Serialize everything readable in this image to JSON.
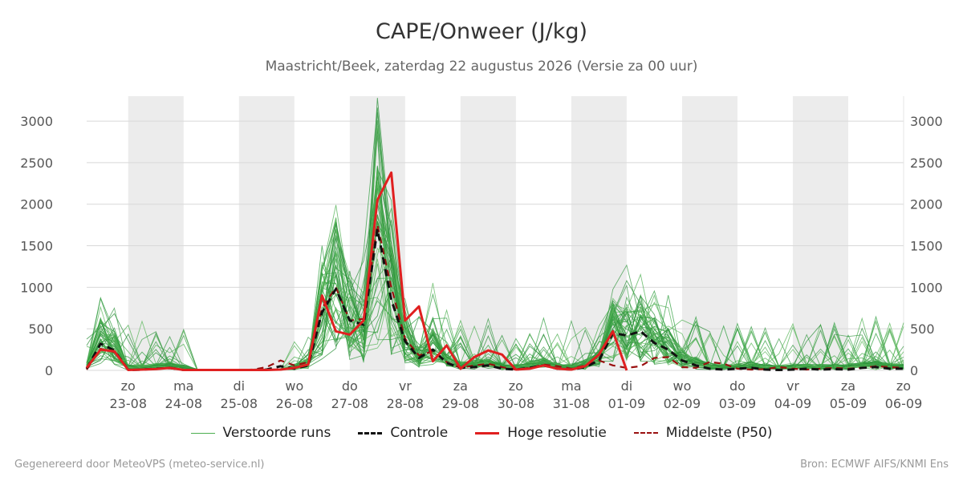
{
  "title": "CAPE/Onweer (J/kg)",
  "subtitle": "Maastricht/Beek, zaterdag 22 augustus 2026 (Versie za 00 uur)",
  "footer": {
    "left": "Gegenereerd door MeteoVPS (meteo-service.nl)",
    "right": "Bron: ECMWF AIFS/KNMI Ens"
  },
  "legend": [
    {
      "label": "Verstoorde runs",
      "color": "#4caf50",
      "style": "thin"
    },
    {
      "label": "Controle",
      "color": "#111111",
      "style": "dashed"
    },
    {
      "label": "Hoge resolutie",
      "color": "#e02020",
      "style": "solid"
    },
    {
      "label": "Middelste (P50)",
      "color": "#9a1010",
      "style": "dashed"
    }
  ],
  "chart_data": {
    "type": "line",
    "title": "CAPE/Onweer (J/kg)",
    "ylim": [
      0,
      3300
    ],
    "yticks": [
      0,
      500,
      1000,
      1500,
      2000,
      2500,
      3000
    ],
    "x_range_days": [
      -0.75,
      14.0
    ],
    "x_ticks": [
      {
        "day": "zo",
        "date": "23-08"
      },
      {
        "day": "ma",
        "date": "24-08"
      },
      {
        "day": "di",
        "date": "25-08"
      },
      {
        "day": "wo",
        "date": "26-08"
      },
      {
        "day": "do",
        "date": "27-08"
      },
      {
        "day": "vr",
        "date": "28-08"
      },
      {
        "day": "za",
        "date": "29-08"
      },
      {
        "day": "zo",
        "date": "30-08"
      },
      {
        "day": "ma",
        "date": "31-08"
      },
      {
        "day": "di",
        "date": "01-09"
      },
      {
        "day": "wo",
        "date": "02-09"
      },
      {
        "day": "do",
        "date": "03-09"
      },
      {
        "day": "vr",
        "date": "04-09"
      },
      {
        "day": "za",
        "date": "05-09"
      },
      {
        "day": "zo",
        "date": "06-09"
      }
    ],
    "shaded_day_starts": [
      0,
      2,
      4,
      6,
      8,
      10,
      12
    ],
    "grid": true,
    "legend_position": "bottom",
    "series": [
      {
        "name": "Hoge resolutie",
        "color": "#e02020",
        "x": [
          -0.75,
          -0.5,
          -0.25,
          0,
          0.25,
          0.5,
          0.75,
          1,
          1.25,
          1.5,
          1.75,
          2,
          2.25,
          2.5,
          2.75,
          3,
          3.25,
          3.5,
          3.75,
          4,
          4.25,
          4.5,
          4.75,
          5,
          5.25,
          5.5,
          5.75,
          6,
          6.25,
          6.5,
          6.75,
          7,
          7.25,
          7.5,
          7.75,
          8,
          8.25,
          8.5,
          8.75,
          9
        ],
        "values": [
          30,
          250,
          230,
          5,
          10,
          15,
          30,
          5,
          5,
          5,
          5,
          5,
          5,
          5,
          10,
          30,
          70,
          900,
          470,
          430,
          600,
          2050,
          2380,
          600,
          770,
          110,
          300,
          20,
          160,
          240,
          190,
          10,
          20,
          60,
          20,
          10,
          50,
          190,
          470,
          0
        ]
      },
      {
        "name": "Controle",
        "color": "#111111",
        "x": [
          -0.75,
          -0.5,
          -0.25,
          0,
          0.25,
          0.5,
          0.75,
          1,
          1.25,
          1.5,
          1.75,
          2,
          2.25,
          2.5,
          2.75,
          3,
          3.25,
          3.5,
          3.75,
          4,
          4.25,
          4.5,
          4.75,
          5,
          5.25,
          5.5,
          5.75,
          6,
          6.25,
          6.5,
          6.75,
          7,
          7.25,
          7.5,
          7.75,
          8,
          8.25,
          8.5,
          8.75,
          9,
          9.25,
          9.5,
          9.75,
          10,
          10.25,
          10.5,
          10.75,
          11,
          11.25,
          11.5,
          11.75,
          12,
          12.25,
          12.5,
          12.75,
          13,
          13.25,
          13.5,
          13.75,
          14
        ],
        "values": [
          20,
          320,
          240,
          5,
          10,
          20,
          30,
          5,
          5,
          5,
          5,
          5,
          5,
          10,
          50,
          20,
          60,
          700,
          980,
          600,
          550,
          1700,
          850,
          350,
          150,
          250,
          90,
          30,
          40,
          60,
          20,
          10,
          30,
          60,
          20,
          10,
          40,
          120,
          450,
          420,
          470,
          330,
          250,
          120,
          60,
          20,
          10,
          20,
          30,
          10,
          5,
          10,
          20,
          10,
          15,
          10,
          30,
          40,
          20,
          20
        ]
      },
      {
        "name": "Middelste (P50)",
        "color": "#9a1010",
        "x": [
          -0.75,
          -0.5,
          -0.25,
          0,
          0.25,
          0.5,
          0.75,
          1,
          1.25,
          1.5,
          1.75,
          2,
          2.25,
          2.5,
          2.75,
          3,
          3.25,
          3.5,
          3.75,
          4,
          4.25,
          4.5,
          4.75,
          5,
          5.25,
          5.5,
          5.75,
          6,
          6.25,
          6.5,
          6.75,
          7,
          7.25,
          7.5,
          7.75,
          8,
          8.25,
          8.5,
          8.75,
          9,
          9.25,
          9.5,
          9.75,
          10,
          10.25,
          10.5,
          10.75,
          11,
          11.25,
          11.5,
          11.75,
          12,
          12.25,
          12.5,
          12.75,
          13,
          13.25,
          13.5,
          13.75,
          14
        ],
        "values": [
          10,
          260,
          220,
          5,
          10,
          20,
          25,
          5,
          5,
          5,
          5,
          5,
          10,
          40,
          120,
          60,
          100,
          750,
          1000,
          600,
          620,
          1750,
          1000,
          380,
          180,
          230,
          100,
          30,
          60,
          80,
          40,
          10,
          30,
          70,
          50,
          20,
          60,
          120,
          60,
          30,
          50,
          150,
          160,
          40,
          30,
          100,
          80,
          20,
          10,
          15,
          40,
          20,
          10,
          20,
          30,
          20,
          30,
          50,
          40,
          30
        ]
      }
    ]
  }
}
